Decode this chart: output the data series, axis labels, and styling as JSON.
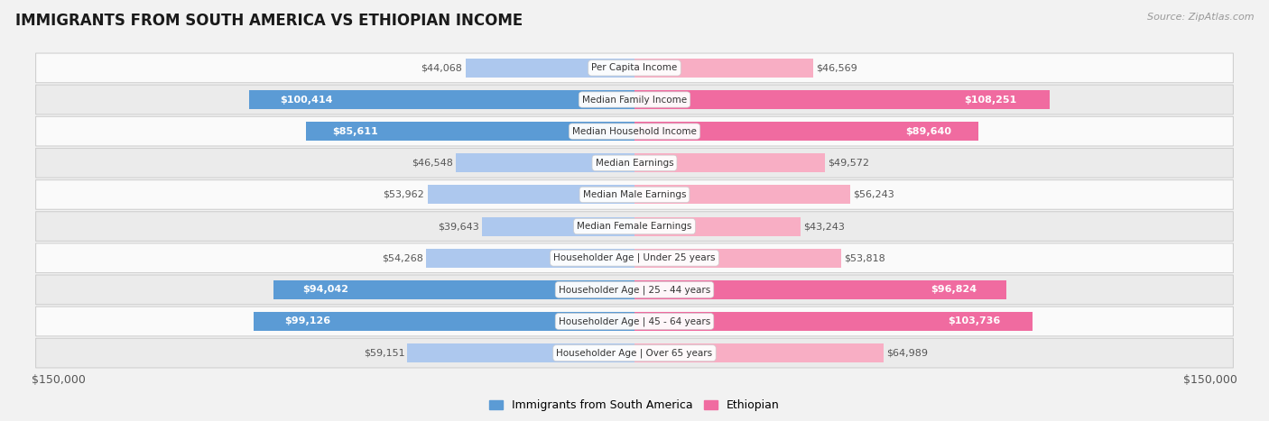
{
  "title": "IMMIGRANTS FROM SOUTH AMERICA VS ETHIOPIAN INCOME",
  "source": "Source: ZipAtlas.com",
  "categories": [
    "Per Capita Income",
    "Median Family Income",
    "Median Household Income",
    "Median Earnings",
    "Median Male Earnings",
    "Median Female Earnings",
    "Householder Age | Under 25 years",
    "Householder Age | 25 - 44 years",
    "Householder Age | 45 - 64 years",
    "Householder Age | Over 65 years"
  ],
  "left_values": [
    44068,
    100414,
    85611,
    46548,
    53962,
    39643,
    54268,
    94042,
    99126,
    59151
  ],
  "right_values": [
    46569,
    108251,
    89640,
    49572,
    56243,
    43243,
    53818,
    96824,
    103736,
    64989
  ],
  "left_labels": [
    "$44,068",
    "$100,414",
    "$85,611",
    "$46,548",
    "$53,962",
    "$39,643",
    "$54,268",
    "$94,042",
    "$99,126",
    "$59,151"
  ],
  "right_labels": [
    "$46,569",
    "$108,251",
    "$89,640",
    "$49,572",
    "$56,243",
    "$43,243",
    "$53,818",
    "$96,824",
    "$103,736",
    "$64,989"
  ],
  "left_color_light": "#adc8ee",
  "left_color_dark": "#5b9bd5",
  "right_color_light": "#f8aec4",
  "right_color_dark": "#f06ba0",
  "max_value": 150000,
  "xlabel_left": "$150,000",
  "xlabel_right": "$150,000",
  "legend_left": "Immigrants from South America",
  "legend_right": "Ethiopian",
  "background_color": "#f2f2f2",
  "row_bg_even": "#fafafa",
  "row_bg_odd": "#ebebeb",
  "title_fontsize": 12,
  "source_fontsize": 8,
  "label_fontsize": 8,
  "category_fontsize": 7.5,
  "bar_height": 0.6,
  "inside_threshold": 65000
}
